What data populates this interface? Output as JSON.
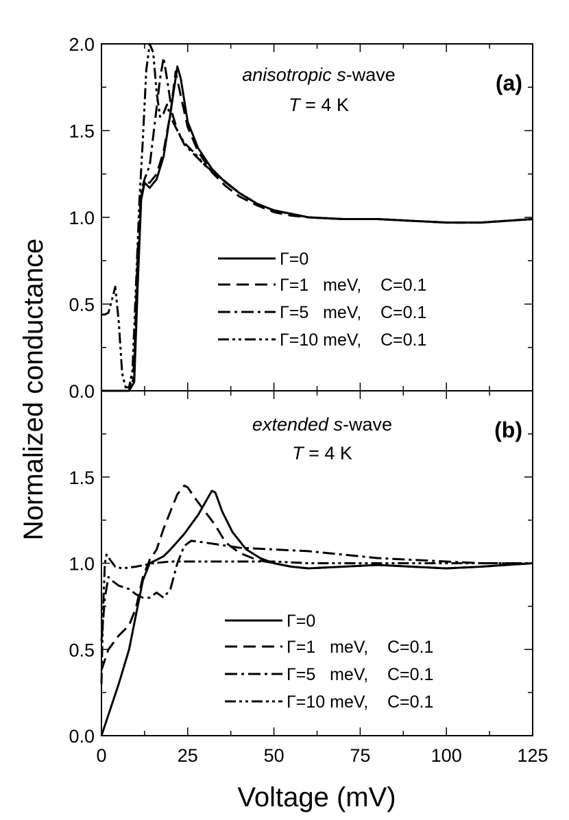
{
  "chart_data": {
    "type": "line",
    "xlabel": "Voltage (mV)",
    "ylabel": "Normalized conductance",
    "xlim": [
      0,
      125
    ],
    "x_ticks": [
      "0",
      "25",
      "50",
      "75",
      "100",
      "125"
    ],
    "panels": [
      {
        "id": "a",
        "label": "(a)",
        "title_italic": "anisotropic s",
        "title_rest": "-wave",
        "temp_italic": "T",
        "temp_rest": " = 4 K",
        "ylim": [
          0,
          2.0
        ],
        "y_ticks": [
          "0.0",
          "0.5",
          "1.0",
          "1.5",
          "2.0"
        ],
        "y_tick_values": [
          0,
          0.5,
          1.0,
          1.5,
          2.0
        ],
        "series": [
          {
            "name": "Γ=0",
            "legend_label": "Γ=0",
            "style": "solid",
            "points": [
              [
                0,
                0
              ],
              [
                8,
                0
              ],
              [
                9.5,
                0.05
              ],
              [
                10.5,
                0.6
              ],
              [
                11.5,
                1.1
              ],
              [
                12.5,
                1.2
              ],
              [
                14,
                1.17
              ],
              [
                16,
                1.22
              ],
              [
                18,
                1.35
              ],
              [
                20,
                1.6
              ],
              [
                22,
                1.87
              ],
              [
                23,
                1.8
              ],
              [
                25,
                1.55
              ],
              [
                28,
                1.4
              ],
              [
                32,
                1.28
              ],
              [
                36,
                1.2
              ],
              [
                40,
                1.14
              ],
              [
                45,
                1.08
              ],
              [
                50,
                1.04
              ],
              [
                55,
                1.02
              ],
              [
                60,
                1.0
              ],
              [
                70,
                0.99
              ],
              [
                80,
                0.99
              ],
              [
                90,
                0.98
              ],
              [
                100,
                0.97
              ],
              [
                110,
                0.97
              ],
              [
                125,
                0.99
              ]
            ]
          },
          {
            "name": "Γ=1 meV, C=0.1",
            "legend_label": "Γ=1   meV,    C=0.1",
            "style": "dash",
            "points": [
              [
                0,
                0
              ],
              [
                8,
                0
              ],
              [
                9.5,
                0.08
              ],
              [
                10.5,
                0.7
              ],
              [
                11.5,
                1.12
              ],
              [
                12.5,
                1.2
              ],
              [
                14,
                1.2
              ],
              [
                16,
                1.25
              ],
              [
                18,
                1.38
              ],
              [
                20,
                1.6
              ],
              [
                21.5,
                1.84
              ],
              [
                23,
                1.7
              ],
              [
                25,
                1.52
              ],
              [
                28,
                1.38
              ],
              [
                32,
                1.26
              ],
              [
                36,
                1.18
              ],
              [
                40,
                1.12
              ],
              [
                45,
                1.07
              ],
              [
                50,
                1.03
              ],
              [
                55,
                1.01
              ],
              [
                60,
                1.0
              ],
              [
                70,
                0.99
              ],
              [
                80,
                0.99
              ],
              [
                90,
                0.98
              ],
              [
                100,
                0.97
              ],
              [
                110,
                0.97
              ],
              [
                125,
                0.99
              ]
            ]
          },
          {
            "name": "Γ=5 meV, C=0.1",
            "legend_label": "Γ=5   meV,    C=0.1",
            "style": "dashdot",
            "points": [
              [
                0,
                0
              ],
              [
                8,
                0
              ],
              [
                9.5,
                0.15
              ],
              [
                10.5,
                0.8
              ],
              [
                11.5,
                1.15
              ],
              [
                12.5,
                1.22
              ],
              [
                14,
                1.3
              ],
              [
                15.5,
                1.55
              ],
              [
                17,
                1.8
              ],
              [
                18,
                1.92
              ],
              [
                19,
                1.8
              ],
              [
                20.5,
                1.6
              ],
              [
                22,
                1.5
              ],
              [
                24,
                1.42
              ],
              [
                27,
                1.36
              ],
              [
                30,
                1.3
              ],
              [
                35,
                1.22
              ],
              [
                40,
                1.14
              ],
              [
                45,
                1.08
              ],
              [
                50,
                1.04
              ],
              [
                55,
                1.02
              ],
              [
                60,
                1.0
              ],
              [
                70,
                0.99
              ],
              [
                80,
                0.99
              ],
              [
                90,
                0.98
              ],
              [
                100,
                0.97
              ],
              [
                110,
                0.97
              ],
              [
                125,
                0.99
              ]
            ]
          },
          {
            "name": "Γ=10 meV, C=0.1",
            "legend_label": "Γ=10 meV,    C=0.1",
            "style": "dashdotdot",
            "points": [
              [
                0,
                0.44
              ],
              [
                1,
                0.44
              ],
              [
                2,
                0.45
              ],
              [
                3,
                0.52
              ],
              [
                4,
                0.6
              ],
              [
                5,
                0.4
              ],
              [
                6,
                0.1
              ],
              [
                7,
                0.02
              ],
              [
                8,
                0.02
              ],
              [
                9,
                0.12
              ],
              [
                10,
                0.6
              ],
              [
                11,
                1.1
              ],
              [
                12,
                1.45
              ],
              [
                13,
                1.85
              ],
              [
                14,
                2.0
              ],
              [
                15,
                1.95
              ],
              [
                16,
                1.72
              ],
              [
                17,
                1.58
              ],
              [
                18,
                1.6
              ],
              [
                19,
                1.65
              ],
              [
                20,
                1.58
              ],
              [
                22,
                1.5
              ],
              [
                24,
                1.43
              ],
              [
                27,
                1.37
              ],
              [
                30,
                1.3
              ],
              [
                35,
                1.22
              ],
              [
                40,
                1.14
              ],
              [
                45,
                1.08
              ],
              [
                50,
                1.04
              ],
              [
                55,
                1.02
              ],
              [
                60,
                1.0
              ],
              [
                70,
                0.99
              ],
              [
                80,
                0.99
              ],
              [
                90,
                0.98
              ],
              [
                100,
                0.97
              ],
              [
                110,
                0.97
              ],
              [
                125,
                0.99
              ]
            ]
          }
        ]
      },
      {
        "id": "b",
        "label": "(b)",
        "title_italic": "extended s",
        "title_rest": "-wave",
        "temp_italic": "T",
        "temp_rest": " = 4 K",
        "ylim": [
          0,
          2.0
        ],
        "y_ticks": [
          "0.0",
          "0.5",
          "1.0",
          "1.5"
        ],
        "y_tick_values": [
          0,
          0.5,
          1.0,
          1.5
        ],
        "series": [
          {
            "name": "Γ=0",
            "legend_label": "Γ=0",
            "style": "solid",
            "points": [
              [
                0,
                0
              ],
              [
                2,
                0.12
              ],
              [
                5,
                0.3
              ],
              [
                8,
                0.5
              ],
              [
                10,
                0.7
              ],
              [
                12,
                0.9
              ],
              [
                14,
                1.0
              ],
              [
                16,
                1.02
              ],
              [
                18,
                1.04
              ],
              [
                20,
                1.08
              ],
              [
                24,
                1.17
              ],
              [
                28,
                1.28
              ],
              [
                30,
                1.35
              ],
              [
                32,
                1.42
              ],
              [
                33,
                1.41
              ],
              [
                35,
                1.3
              ],
              [
                38,
                1.18
              ],
              [
                42,
                1.08
              ],
              [
                46,
                1.03
              ],
              [
                50,
                1.0
              ],
              [
                55,
                0.98
              ],
              [
                60,
                0.97
              ],
              [
                70,
                0.98
              ],
              [
                80,
                0.99
              ],
              [
                90,
                0.98
              ],
              [
                100,
                0.97
              ],
              [
                110,
                0.98
              ],
              [
                125,
                1.0
              ]
            ]
          },
          {
            "name": "Γ=1 meV, C=0.1",
            "legend_label": "Γ=1   meV,    C=0.1",
            "style": "dash",
            "points": [
              [
                0,
                0.38
              ],
              [
                2,
                0.5
              ],
              [
                5,
                0.58
              ],
              [
                8,
                0.64
              ],
              [
                10,
                0.74
              ],
              [
                12,
                0.92
              ],
              [
                14,
                1.02
              ],
              [
                16,
                1.08
              ],
              [
                18,
                1.2
              ],
              [
                20,
                1.3
              ],
              [
                22,
                1.4
              ],
              [
                24,
                1.45
              ],
              [
                25,
                1.44
              ],
              [
                27,
                1.38
              ],
              [
                30,
                1.3
              ],
              [
                33,
                1.22
              ],
              [
                36,
                1.12
              ],
              [
                40,
                1.06
              ],
              [
                45,
                1.02
              ],
              [
                50,
                1.0
              ],
              [
                55,
                0.98
              ],
              [
                60,
                0.97
              ],
              [
                70,
                0.98
              ],
              [
                80,
                0.99
              ],
              [
                90,
                0.98
              ],
              [
                100,
                0.97
              ],
              [
                110,
                0.98
              ],
              [
                125,
                1.0
              ]
            ]
          },
          {
            "name": "Γ=5 meV, C=0.1",
            "legend_label": "Γ=5   meV,    C=0.1",
            "style": "dashdot",
            "points": [
              [
                0,
                0.55
              ],
              [
                1,
                0.8
              ],
              [
                2,
                0.92
              ],
              [
                3,
                0.9
              ],
              [
                5,
                0.87
              ],
              [
                8,
                0.85
              ],
              [
                10,
                0.82
              ],
              [
                12,
                0.8
              ],
              [
                14,
                0.8
              ],
              [
                16,
                0.83
              ],
              [
                18,
                0.8
              ],
              [
                20,
                0.85
              ],
              [
                22,
                1.0
              ],
              [
                24,
                1.1
              ],
              [
                26,
                1.13
              ],
              [
                30,
                1.12
              ],
              [
                40,
                1.09
              ],
              [
                50,
                1.08
              ],
              [
                60,
                1.07
              ],
              [
                70,
                1.05
              ],
              [
                80,
                1.03
              ],
              [
                90,
                1.02
              ],
              [
                100,
                1.01
              ],
              [
                110,
                1.0
              ],
              [
                125,
                1.0
              ]
            ]
          },
          {
            "name": "Γ=10 meV, C=0.1",
            "legend_label": "Γ=10 meV,    C=0.1",
            "style": "dashdotdot",
            "points": [
              [
                0,
                0.3
              ],
              [
                0.5,
                0.75
              ],
              [
                1,
                1.0
              ],
              [
                1.5,
                1.05
              ],
              [
                2.5,
                1.02
              ],
              [
                4,
                0.98
              ],
              [
                6,
                0.97
              ],
              [
                10,
                0.98
              ],
              [
                15,
                1.0
              ],
              [
                20,
                1.01
              ],
              [
                30,
                1.01
              ],
              [
                40,
                1.01
              ],
              [
                50,
                1.01
              ],
              [
                60,
                1.0
              ],
              [
                70,
                1.0
              ],
              [
                80,
                1.0
              ],
              [
                90,
                1.0
              ],
              [
                100,
                1.0
              ],
              [
                110,
                1.0
              ],
              [
                125,
                1.0
              ]
            ]
          }
        ]
      }
    ]
  }
}
